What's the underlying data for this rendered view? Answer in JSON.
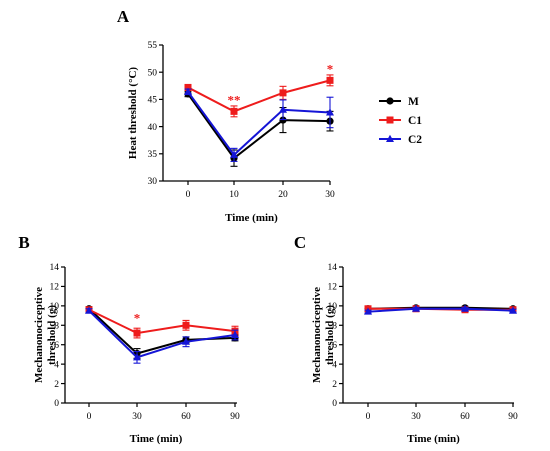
{
  "chart_data": [
    {
      "type": "line",
      "panel_label": "A",
      "xlabel": "Time (min)",
      "ylabel": "Heat threshold (°C)",
      "x": [
        "0",
        "10",
        "20",
        "30"
      ],
      "ylim": [
        30,
        55
      ],
      "yticks": [
        "30",
        "35",
        "40",
        "45",
        "50",
        "55"
      ],
      "legend": "right",
      "series": [
        {
          "name": "M",
          "color": "#000000",
          "marker": "circle",
          "values": [
            46.0,
            34.2,
            41.2,
            41.0
          ],
          "errors": [
            0.5,
            1.5,
            2.3,
            1.8
          ]
        },
        {
          "name": "C1",
          "color": "#ee1c1c",
          "marker": "square",
          "values": [
            47.2,
            42.8,
            46.2,
            48.5
          ],
          "errors": [
            0.5,
            1.0,
            1.2,
            1.0
          ]
        },
        {
          "name": "C2",
          "color": "#1515d6",
          "marker": "triangle",
          "values": [
            46.4,
            34.8,
            43.1,
            42.6
          ],
          "errors": [
            0.5,
            1.2,
            1.8,
            2.8
          ]
        }
      ],
      "annotations": [
        {
          "text": "**",
          "x": "10",
          "y": 44.8,
          "color": "#ee1c1c"
        },
        {
          "text": "*",
          "x": "30",
          "y": 50.5,
          "color": "#ee1c1c"
        }
      ]
    },
    {
      "type": "line",
      "panel_label": "B",
      "xlabel": "Time (min)",
      "ylabel": [
        "Mechanonociceptive",
        "threshold (g)"
      ],
      "x": [
        "0",
        "30",
        "60",
        "90"
      ],
      "ylim": [
        0,
        14
      ],
      "yticks": [
        "0",
        "2",
        "4",
        "6",
        "8",
        "10",
        "12",
        "14"
      ],
      "series": [
        {
          "name": "M",
          "color": "#000000",
          "marker": "circle",
          "values": [
            9.7,
            5.1,
            6.5,
            6.7
          ],
          "errors": [
            0.2,
            0.5,
            0.3,
            0.3
          ]
        },
        {
          "name": "C1",
          "color": "#ee1c1c",
          "marker": "square",
          "values": [
            9.6,
            7.2,
            8.0,
            7.4
          ],
          "errors": [
            0.2,
            0.5,
            0.5,
            0.5
          ]
        },
        {
          "name": "C2",
          "color": "#1515d6",
          "marker": "triangle",
          "values": [
            9.5,
            4.7,
            6.3,
            7.0
          ],
          "errors": [
            0.2,
            0.6,
            0.5,
            0.5
          ]
        }
      ],
      "annotations": [
        {
          "text": "*",
          "x": "30",
          "y": 8.7,
          "color": "#ee1c1c"
        }
      ]
    },
    {
      "type": "line",
      "panel_label": "C",
      "xlabel": "Time (min)",
      "ylabel": [
        "Mechanonociceptive",
        "threshold (g)"
      ],
      "x": [
        "0",
        "30",
        "60",
        "90"
      ],
      "ylim": [
        0,
        14
      ],
      "yticks": [
        "0",
        "2",
        "4",
        "6",
        "8",
        "10",
        "12",
        "14"
      ],
      "series": [
        {
          "name": "M",
          "color": "#000000",
          "marker": "circle",
          "values": [
            9.7,
            9.8,
            9.8,
            9.7
          ],
          "errors": [
            0.15,
            0.15,
            0.15,
            0.15
          ]
        },
        {
          "name": "C1",
          "color": "#ee1c1c",
          "marker": "square",
          "values": [
            9.7,
            9.7,
            9.6,
            9.6
          ],
          "errors": [
            0.15,
            0.15,
            0.2,
            0.15
          ]
        },
        {
          "name": "C2",
          "color": "#1515d6",
          "marker": "triangle",
          "values": [
            9.4,
            9.7,
            9.7,
            9.5
          ],
          "errors": [
            0.15,
            0.15,
            0.15,
            0.15
          ]
        }
      ],
      "annotations": []
    }
  ]
}
